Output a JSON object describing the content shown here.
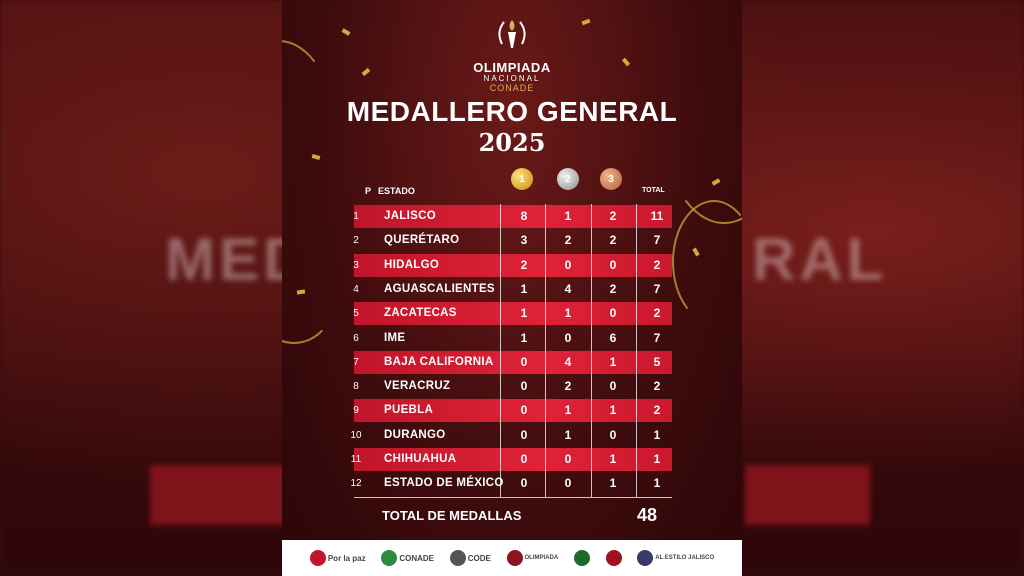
{
  "logo": {
    "line1": "OLIMPIADA",
    "line2": "NACIONAL",
    "line3": "CONADE"
  },
  "title": "MEDALLERO GENERAL",
  "year": "2025",
  "headers": {
    "position": "P",
    "state": "ESTADO",
    "total": "TOTAL"
  },
  "medal_icons": {
    "gold": "1",
    "silver": "2",
    "bronze": "3"
  },
  "rows": [
    {
      "pos": "1",
      "state": "JALISCO",
      "gold": "8",
      "silver": "1",
      "bronze": "2",
      "total": "11"
    },
    {
      "pos": "2",
      "state": "QUERÉTARO",
      "gold": "3",
      "silver": "2",
      "bronze": "2",
      "total": "7"
    },
    {
      "pos": "3",
      "state": "HIDALGO",
      "gold": "2",
      "silver": "0",
      "bronze": "0",
      "total": "2"
    },
    {
      "pos": "4",
      "state": "AGUASCALIENTES",
      "gold": "1",
      "silver": "4",
      "bronze": "2",
      "total": "7"
    },
    {
      "pos": "5",
      "state": "ZACATECAS",
      "gold": "1",
      "silver": "1",
      "bronze": "0",
      "total": "2"
    },
    {
      "pos": "6",
      "state": "IME",
      "gold": "1",
      "silver": "0",
      "bronze": "6",
      "total": "7"
    },
    {
      "pos": "7",
      "state": "BAJA CALIFORNIA",
      "gold": "0",
      "silver": "4",
      "bronze": "1",
      "total": "5"
    },
    {
      "pos": "8",
      "state": "VERACRUZ",
      "gold": "0",
      "silver": "2",
      "bronze": "0",
      "total": "2"
    },
    {
      "pos": "9",
      "state": "PUEBLA",
      "gold": "0",
      "silver": "1",
      "bronze": "1",
      "total": "2"
    },
    {
      "pos": "10",
      "state": "DURANGO",
      "gold": "0",
      "silver": "1",
      "bronze": "0",
      "total": "1"
    },
    {
      "pos": "11",
      "state": "CHIHUAHUA",
      "gold": "0",
      "silver": "0",
      "bronze": "1",
      "total": "1"
    },
    {
      "pos": "12",
      "state": "ESTADO DE MÉXICO",
      "gold": "0",
      "silver": "0",
      "bronze": "1",
      "total": "1"
    }
  ],
  "total": {
    "label": "TOTAL DE MEDALLAS",
    "value": "48"
  },
  "sponsors": [
    "Por la paz",
    "CONADE",
    "CODE",
    "OLIMPIADA",
    "AL ESTILO JALISCO"
  ],
  "background_text": "MEDALLERO GENERAL",
  "colors": {
    "accent_red": "#e02237",
    "background": "#3d0b0d",
    "gold": "#d4a93b"
  }
}
